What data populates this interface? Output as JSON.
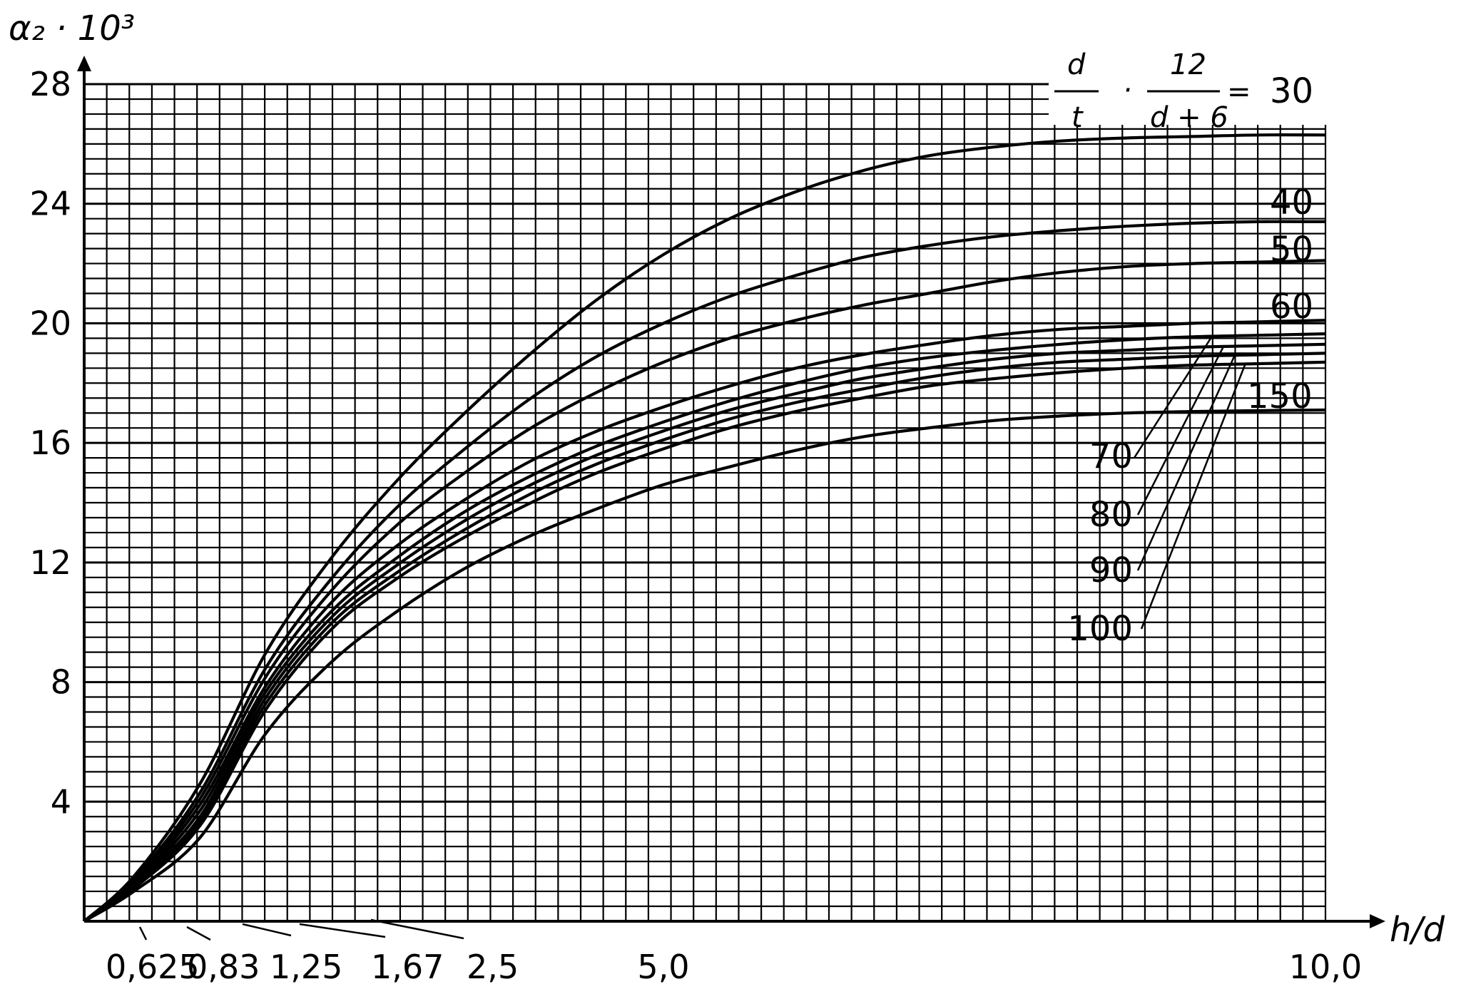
{
  "chart_data": {
    "type": "line",
    "title": "",
    "ylabel": "α₂ · 10³",
    "xlabel": "h/d",
    "ylim": [
      0,
      28
    ],
    "xlim": [
      0.625,
      10.0
    ],
    "grid": true,
    "y_ticks": [
      "4",
      "8",
      "12",
      "16",
      "20",
      "24",
      "28"
    ],
    "x_ticks": [
      "0,625",
      "0,83",
      "1,25",
      "1,67",
      "2,5",
      "5,0",
      "10,0"
    ],
    "legend": {
      "lhs_num": "d",
      "lhs_den": "t",
      "rhs_num": "12",
      "rhs_den": "d + 6",
      "dot": "·",
      "equals": "="
    },
    "series": [
      {
        "label": "30",
        "x": [
          0.625,
          1.0,
          1.5,
          2.0,
          2.5,
          3.0,
          3.5,
          4.0,
          4.5,
          5.0,
          5.5,
          6.0,
          6.5,
          7.0,
          7.5,
          8.0,
          8.5,
          9.0,
          9.5,
          10.0
        ],
        "y": [
          0,
          1.5,
          4.6,
          9.0,
          12.2,
          14.8,
          17.0,
          19.0,
          20.8,
          22.3,
          23.5,
          24.4,
          25.1,
          25.6,
          25.9,
          26.1,
          26.2,
          26.25,
          26.3,
          26.3
        ]
      },
      {
        "label": "40",
        "x": [
          0.625,
          1.0,
          1.5,
          2.0,
          2.5,
          3.0,
          3.5,
          4.0,
          4.5,
          5.0,
          5.5,
          6.0,
          6.5,
          7.0,
          7.5,
          8.0,
          8.5,
          9.0,
          9.5,
          10.0
        ],
        "y": [
          0,
          1.4,
          4.3,
          8.5,
          11.5,
          13.9,
          15.8,
          17.5,
          18.9,
          20.0,
          20.9,
          21.6,
          22.2,
          22.6,
          22.9,
          23.1,
          23.25,
          23.35,
          23.4,
          23.4
        ]
      },
      {
        "label": "50",
        "x": [
          0.625,
          1.0,
          1.5,
          2.0,
          2.5,
          3.0,
          3.5,
          4.0,
          4.5,
          5.0,
          5.5,
          6.0,
          6.5,
          7.0,
          7.5,
          8.0,
          8.5,
          9.0,
          9.5,
          10.0
        ],
        "y": [
          0,
          1.35,
          4.1,
          8.2,
          11.1,
          13.3,
          15.0,
          16.5,
          17.7,
          18.7,
          19.5,
          20.1,
          20.6,
          21.0,
          21.4,
          21.7,
          21.9,
          22.0,
          22.05,
          22.1
        ]
      },
      {
        "label": "60",
        "x": [
          0.625,
          1.0,
          1.5,
          2.0,
          2.5,
          3.0,
          3.5,
          4.0,
          4.5,
          5.0,
          5.5,
          6.0,
          6.5,
          7.0,
          7.5,
          8.0,
          8.5,
          9.0,
          9.5,
          10.0
        ],
        "y": [
          0,
          1.3,
          3.9,
          7.9,
          10.7,
          12.6,
          14.1,
          15.4,
          16.4,
          17.2,
          17.9,
          18.5,
          18.95,
          19.3,
          19.6,
          19.8,
          19.9,
          20.0,
          20.05,
          20.1
        ]
      },
      {
        "label": "70",
        "x": [
          0.625,
          1.0,
          1.5,
          2.0,
          2.5,
          3.0,
          3.5,
          4.0,
          4.5,
          5.0,
          5.5,
          6.0,
          6.5,
          7.0,
          7.5,
          8.0,
          8.5,
          9.0,
          9.5,
          10.0
        ],
        "y": [
          0,
          1.25,
          3.7,
          7.7,
          10.4,
          12.2,
          13.7,
          14.9,
          15.9,
          16.7,
          17.4,
          18.0,
          18.5,
          18.85,
          19.1,
          19.3,
          19.45,
          19.55,
          19.6,
          19.65
        ]
      },
      {
        "label": "80",
        "x": [
          0.625,
          1.0,
          1.5,
          2.0,
          2.5,
          3.0,
          3.5,
          4.0,
          4.5,
          5.0,
          5.5,
          6.0,
          6.5,
          7.0,
          7.5,
          8.0,
          8.5,
          9.0,
          9.5,
          10.0
        ],
        "y": [
          0,
          1.2,
          3.5,
          7.5,
          10.2,
          11.95,
          13.4,
          14.6,
          15.6,
          16.4,
          17.1,
          17.65,
          18.15,
          18.5,
          18.8,
          19.0,
          19.1,
          19.2,
          19.25,
          19.3
        ]
      },
      {
        "label": "90",
        "x": [
          0.625,
          1.0,
          1.5,
          2.0,
          2.5,
          3.0,
          3.5,
          4.0,
          4.5,
          5.0,
          5.5,
          6.0,
          6.5,
          7.0,
          7.5,
          8.0,
          8.5,
          9.0,
          9.5,
          10.0
        ],
        "y": [
          0,
          1.15,
          3.35,
          7.3,
          10.0,
          11.7,
          13.1,
          14.3,
          15.3,
          16.1,
          16.8,
          17.35,
          17.8,
          18.2,
          18.5,
          18.7,
          18.8,
          18.9,
          18.95,
          19.0
        ]
      },
      {
        "label": "100",
        "x": [
          0.625,
          1.0,
          1.5,
          2.0,
          2.5,
          3.0,
          3.5,
          4.0,
          4.5,
          5.0,
          5.5,
          6.0,
          6.5,
          7.0,
          7.5,
          8.0,
          8.5,
          9.0,
          9.5,
          10.0
        ],
        "y": [
          0,
          1.1,
          3.2,
          7.1,
          9.8,
          11.5,
          12.85,
          14.0,
          15.0,
          15.8,
          16.5,
          17.05,
          17.5,
          17.9,
          18.15,
          18.35,
          18.5,
          18.6,
          18.65,
          18.7
        ]
      },
      {
        "label": "150",
        "x": [
          0.625,
          1.0,
          1.5,
          2.0,
          2.5,
          3.0,
          3.5,
          4.0,
          4.5,
          5.0,
          5.5,
          6.0,
          6.5,
          7.0,
          7.5,
          8.0,
          8.5,
          9.0,
          9.5,
          10.0
        ],
        "y": [
          0,
          1.0,
          2.8,
          6.3,
          8.7,
          10.4,
          11.8,
          12.9,
          13.8,
          14.6,
          15.2,
          15.75,
          16.2,
          16.5,
          16.75,
          16.9,
          17.0,
          17.05,
          17.08,
          17.1
        ]
      }
    ]
  }
}
